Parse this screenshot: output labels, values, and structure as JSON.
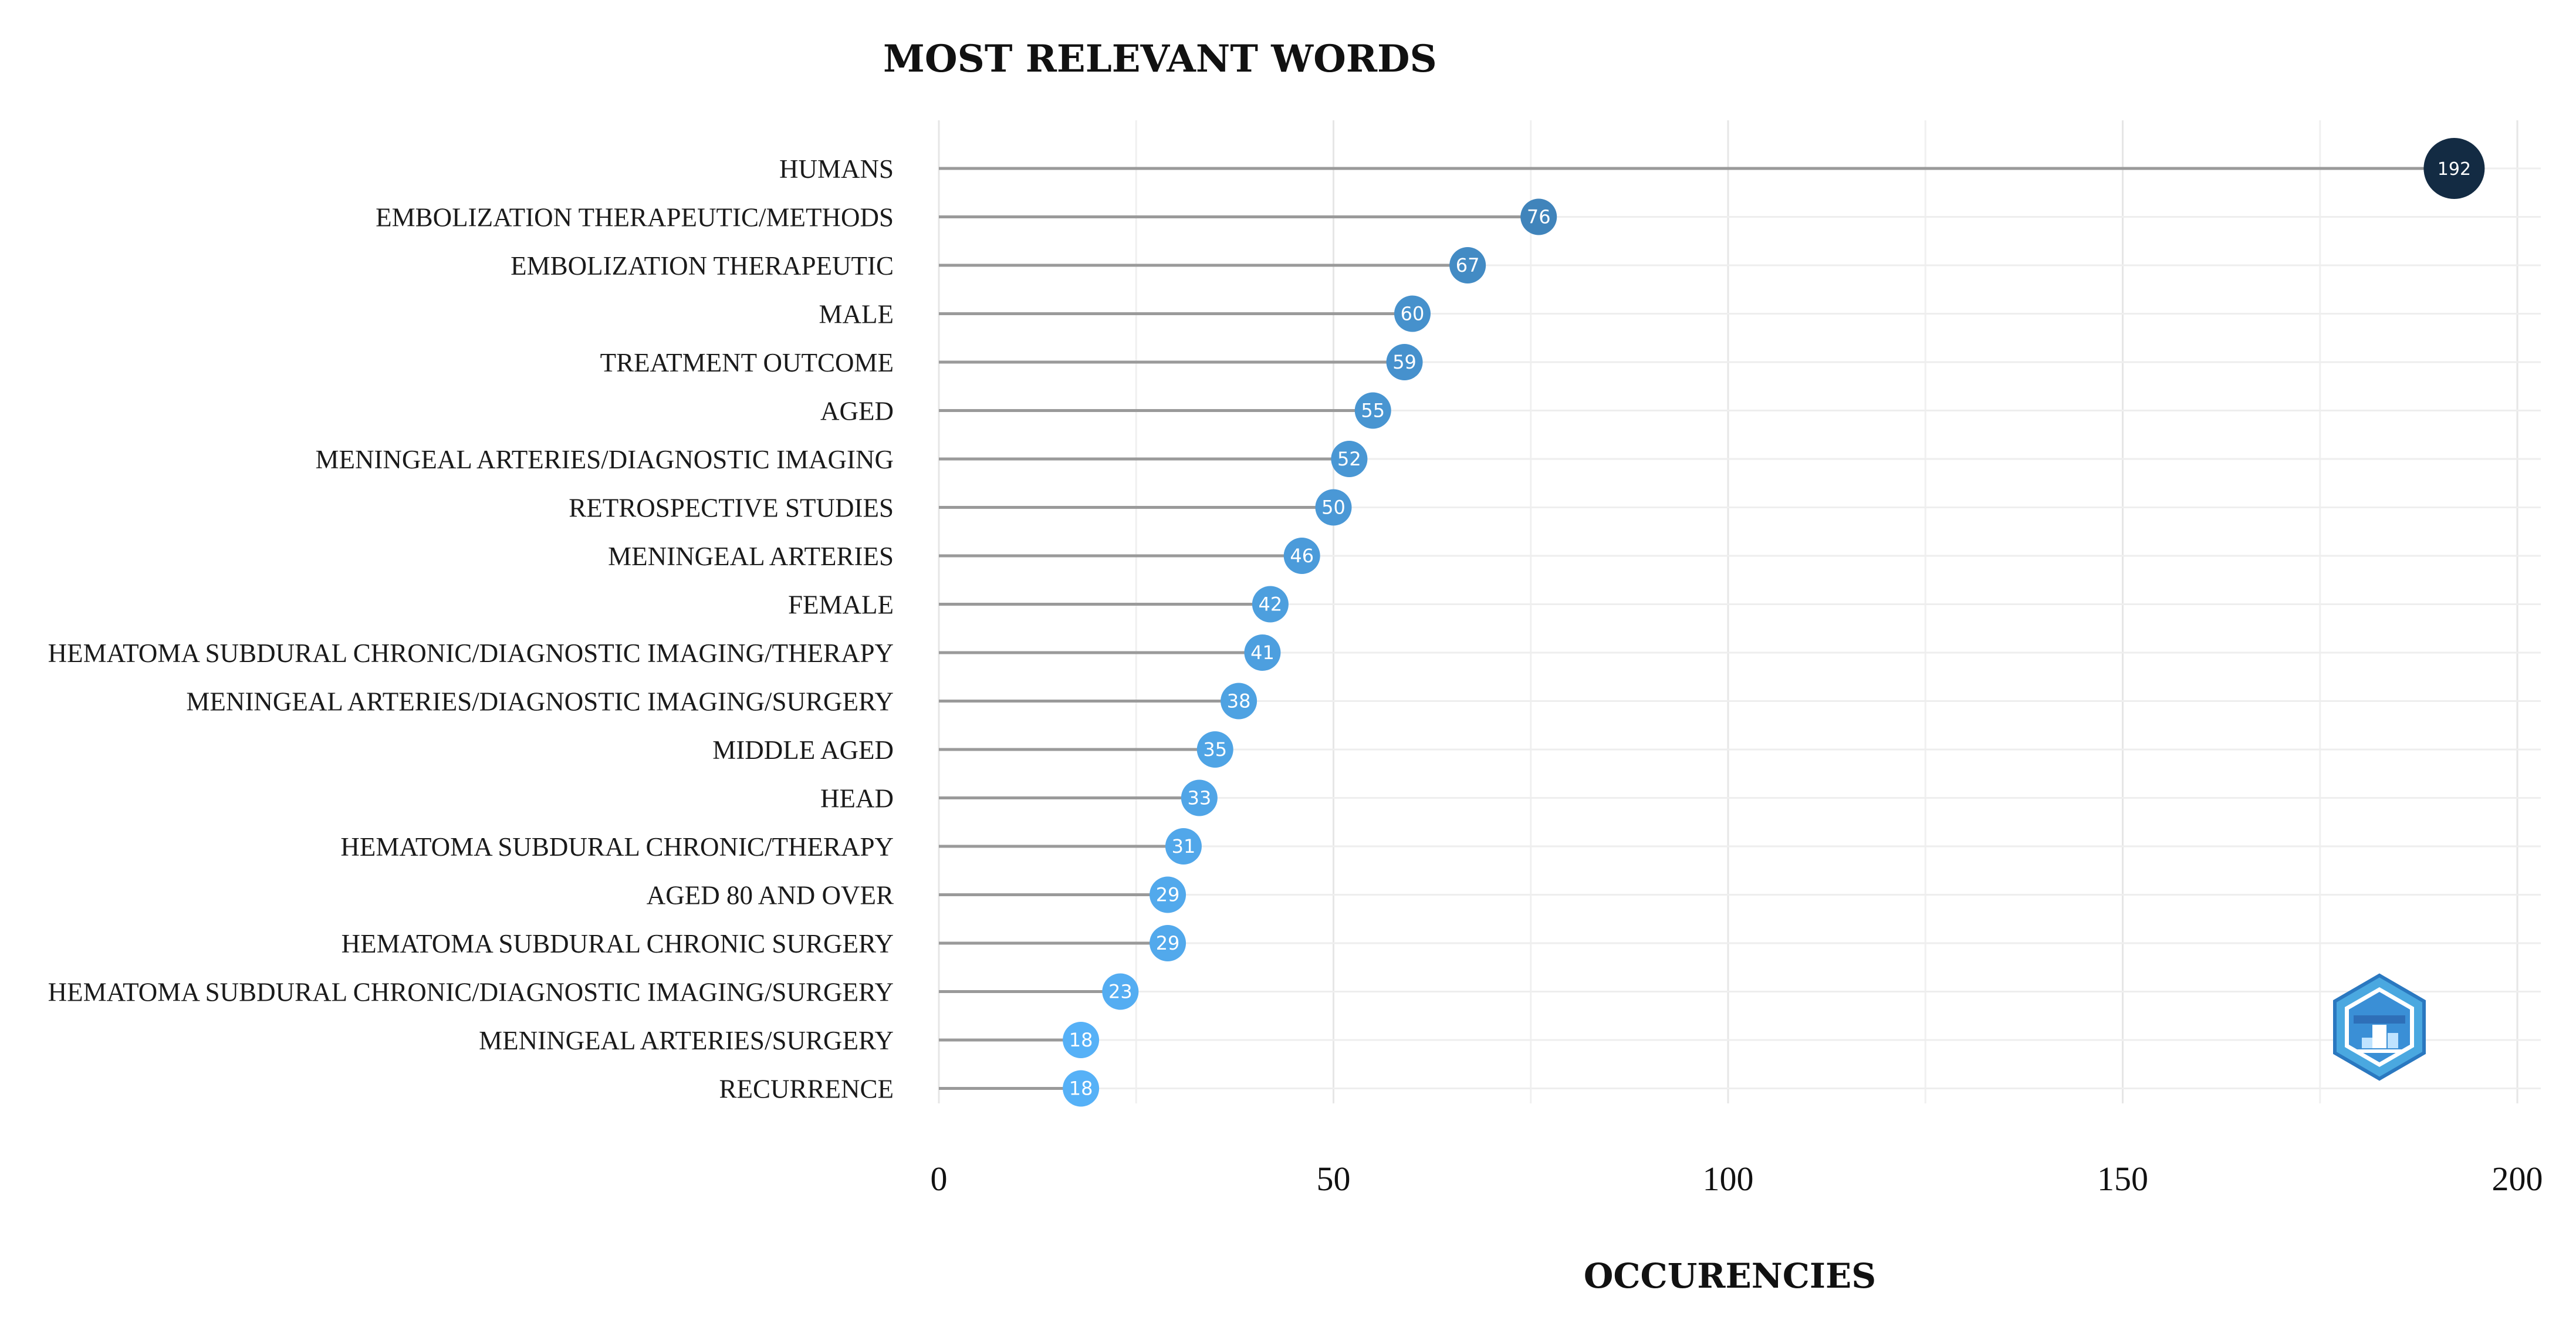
{
  "chart_data": {
    "type": "lollipop",
    "orientation": "horizontal",
    "title": "MOST RELEVANT WORDS",
    "xlabel": "OCCURENCIES",
    "ylabel": "",
    "xlim": [
      0,
      200
    ],
    "xticks": [
      0,
      50,
      100,
      150,
      200
    ],
    "grid": true,
    "categories": [
      "HUMANS",
      "EMBOLIZATION THERAPEUTIC/METHODS",
      "EMBOLIZATION THERAPEUTIC",
      "MALE",
      "TREATMENT OUTCOME",
      "AGED",
      "MENINGEAL ARTERIES/DIAGNOSTIC IMAGING",
      "RETROSPECTIVE STUDIES",
      "MENINGEAL ARTERIES",
      "FEMALE",
      "HEMATOMA SUBDURAL CHRONIC/DIAGNOSTIC IMAGING/THERAPY",
      "MENINGEAL ARTERIES/DIAGNOSTIC IMAGING/SURGERY",
      "MIDDLE AGED",
      "HEAD",
      "HEMATOMA SUBDURAL CHRONIC/THERAPY",
      "AGED 80 AND OVER",
      "HEMATOMA SUBDURAL CHRONIC SURGERY",
      "HEMATOMA SUBDURAL CHRONIC/DIAGNOSTIC IMAGING/SURGERY",
      "MENINGEAL ARTERIES/SURGERY",
      "RECURRENCE"
    ],
    "values": [
      192,
      76,
      67,
      60,
      59,
      55,
      52,
      50,
      46,
      42,
      41,
      38,
      35,
      33,
      31,
      29,
      29,
      23,
      18,
      18
    ],
    "color_scale": {
      "low": "#56B1F7",
      "high": "#132B43"
    },
    "logo": "bibliometrix-logo"
  }
}
